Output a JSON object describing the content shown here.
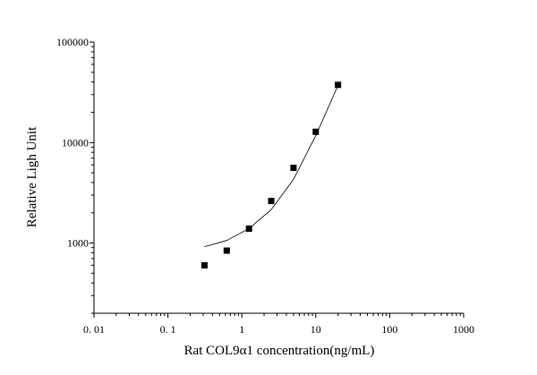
{
  "chart_data": {
    "type": "scatter",
    "title": "",
    "xlabel": "Rat  COL9α1  concentration(ng/mL)",
    "ylabel": "Relative  Ligh Unit",
    "x_scale": "log",
    "y_scale": "log",
    "xlim": [
      0.01,
      1000
    ],
    "ylim": [
      200,
      100000
    ],
    "x_ticks": [
      {
        "value": 0.01,
        "label": "0. 01"
      },
      {
        "value": 0.1,
        "label": "0. 1"
      },
      {
        "value": 1,
        "label": "1"
      },
      {
        "value": 10,
        "label": "10"
      },
      {
        "value": 100,
        "label": "100"
      },
      {
        "value": 1000,
        "label": "1000"
      }
    ],
    "y_ticks": [
      {
        "value": 1000,
        "label": "1000"
      },
      {
        "value": 10000,
        "label": "10000"
      },
      {
        "value": 100000,
        "label": "100000"
      }
    ],
    "grid": false,
    "series": [
      {
        "kind": "points",
        "marker": "square",
        "color": "#000000",
        "x": [
          0.3125,
          0.625,
          1.25,
          2.5,
          5,
          10,
          20
        ],
        "y": [
          600,
          840,
          1390,
          2620,
          5600,
          12800,
          37500
        ]
      },
      {
        "kind": "fit-line",
        "color": "#000000",
        "x": [
          0.3125,
          0.625,
          1.25,
          2.5,
          5,
          10,
          20
        ],
        "y": [
          920,
          1060,
          1390,
          2150,
          4300,
          11700,
          37000
        ]
      }
    ]
  }
}
